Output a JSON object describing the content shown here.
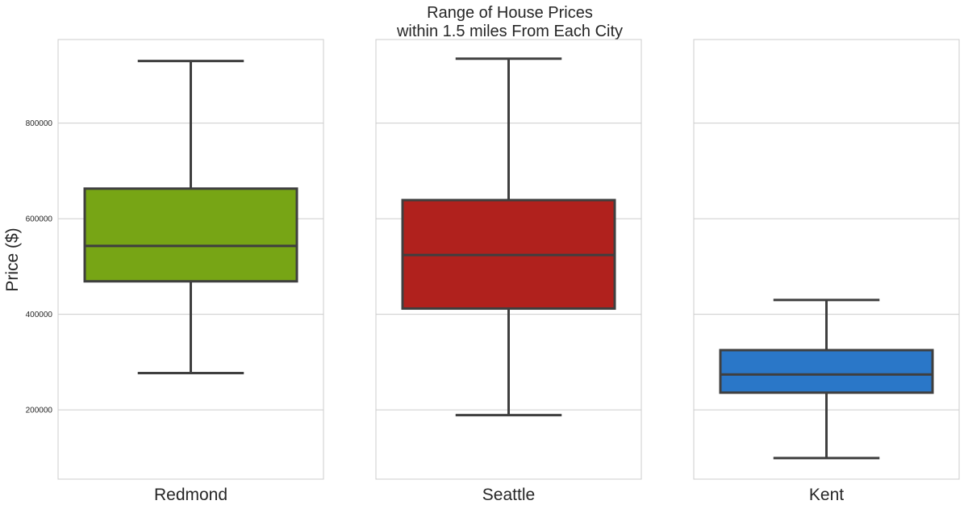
{
  "chart_data": {
    "type": "box",
    "title_lines": [
      "Range of House Prices",
      "within 1.5 miles From Each City"
    ],
    "ylabel": "Price ($)",
    "ylim": [
      55000,
      975000
    ],
    "yticks": [
      200000,
      400000,
      600000,
      800000
    ],
    "ytick_labels": [
      "200000",
      "400000",
      "600000",
      "800000"
    ],
    "grid": true,
    "shared_y": true,
    "panels": [
      {
        "category": "Redmond",
        "color": "#77a515",
        "whislo": 277000,
        "q1": 469000,
        "med": 543000,
        "q3": 663000,
        "whishi": 930000
      },
      {
        "category": "Seattle",
        "color": "#b0211d",
        "whislo": 189000,
        "q1": 412000,
        "med": 524000,
        "q3": 639000,
        "whishi": 935000
      },
      {
        "category": "Kent",
        "color": "#2a77c8",
        "whislo": 99000,
        "q1": 236000,
        "med": 274000,
        "q3": 325000,
        "whishi": 430000
      }
    ]
  }
}
